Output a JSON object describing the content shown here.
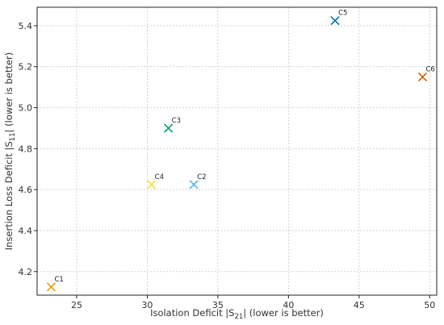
{
  "chart_data": {
    "type": "scatter",
    "title": "",
    "xlabel": "Isolation Deficit |S21| (lower is better)",
    "xlabel_parts": {
      "pre": "Isolation Deficit |S",
      "sub": "21",
      "post": "| (lower is better)"
    },
    "ylabel": "Insertion Loss Deficit |S11| (lower is better)",
    "ylabel_parts": {
      "pre": "Insertion Loss Deficit |S",
      "sub": "11",
      "post": "| (lower is better)"
    },
    "xlim": [
      22.2,
      50.5
    ],
    "ylim": [
      4.085,
      5.49
    ],
    "x_ticks": [
      25,
      30,
      35,
      40,
      45,
      50
    ],
    "x_tick_labels": [
      "25",
      "30",
      "35",
      "40",
      "45",
      "50"
    ],
    "y_ticks": [
      4.2,
      4.4,
      4.6,
      4.8,
      5.0,
      5.2,
      5.4
    ],
    "y_tick_labels": [
      "4.2",
      "4.4",
      "4.6",
      "4.8",
      "5.0",
      "5.2",
      "5.4"
    ],
    "grid": true,
    "marker": "x",
    "points": [
      {
        "label": "C1",
        "x": 23.2,
        "y": 4.125,
        "color": "#e69f00"
      },
      {
        "label": "C2",
        "x": 33.3,
        "y": 4.625,
        "color": "#56b4e9"
      },
      {
        "label": "C3",
        "x": 31.5,
        "y": 4.9,
        "color": "#009e73"
      },
      {
        "label": "C4",
        "x": 30.3,
        "y": 4.625,
        "color": "#f0e442"
      },
      {
        "label": "C5",
        "x": 43.3,
        "y": 5.425,
        "color": "#0072b2"
      },
      {
        "label": "C6",
        "x": 49.5,
        "y": 5.15,
        "color": "#d55e00"
      }
    ]
  }
}
